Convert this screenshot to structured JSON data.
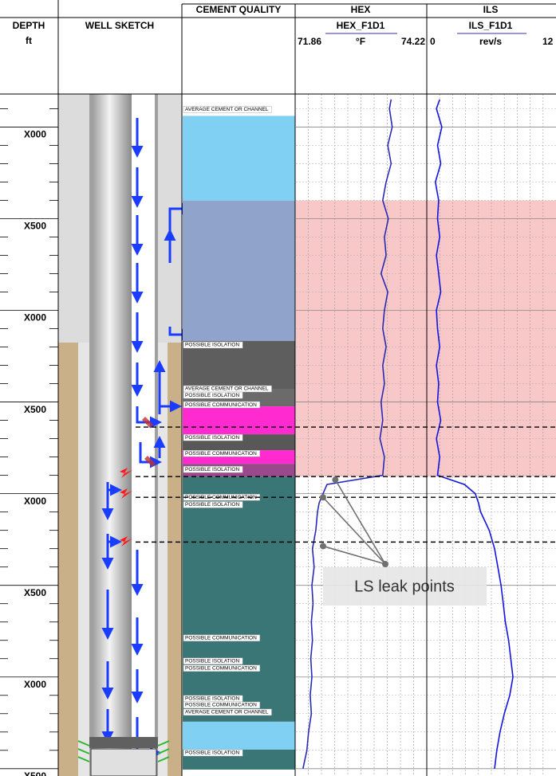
{
  "chart_data": {
    "type": "well_log",
    "depth_axis": {
      "title": "DEPTH",
      "unit": "ft",
      "lim": [
        -180,
        3540
      ],
      "ticks": [
        {
          "value": 0,
          "label": "X000"
        },
        {
          "value": 500,
          "label": "X500"
        },
        {
          "value": 1000,
          "label": "X000"
        },
        {
          "value": 1500,
          "label": "X500"
        },
        {
          "value": 2000,
          "label": "X000"
        },
        {
          "value": 2500,
          "label": "X500"
        },
        {
          "value": 3000,
          "label": "X000"
        },
        {
          "value": 3500,
          "label": "X500"
        }
      ],
      "minor_ticks": [
        -100,
        100,
        200,
        300,
        400,
        600,
        700,
        800,
        900,
        1100,
        1200,
        1300,
        1400,
        1600,
        1700,
        1800,
        1900,
        2100,
        2200,
        2300,
        2400,
        2600,
        2700,
        2800,
        2900,
        3100,
        3200,
        3300,
        3400
      ]
    },
    "sketch_title": "WELL SKETCH",
    "cement": {
      "title": "CEMENT QUALITY",
      "zones": [
        {
          "top": -61,
          "bottom": 401,
          "color": "#80d0f4"
        },
        {
          "top": 401,
          "bottom": 1167,
          "color": "#8fa3cb"
        },
        {
          "top": 1167,
          "bottom": 1428,
          "color": "#5e5e5e"
        },
        {
          "top": 1428,
          "bottom": 1524,
          "color": "#6b6b6b"
        },
        {
          "top": 1524,
          "bottom": 1676,
          "color": "#ff2ad0"
        },
        {
          "top": 1676,
          "bottom": 1763,
          "color": "#585858"
        },
        {
          "top": 1763,
          "bottom": 1837,
          "color": "#ff2ad0"
        },
        {
          "top": 1837,
          "bottom": 1907,
          "color": "#9a4a8c"
        },
        {
          "top": 1907,
          "bottom": 3244,
          "color": "#3b7676"
        },
        {
          "top": 3244,
          "bottom": 3396,
          "color": "#80d0f4"
        },
        {
          "top": 3396,
          "bottom": 3505,
          "color": "#3b7676"
        }
      ],
      "labels": [
        {
          "text": "AVERAGE CEMENT OR CHANNEL",
          "depth": -96
        },
        {
          "text": "POSSIBLE ISOLATION",
          "depth": 1189
        },
        {
          "text": "AVERAGE CEMENT OR CHANNEL",
          "depth": 1428
        },
        {
          "text": "POSSIBLE ISOLATION",
          "depth": 1463
        },
        {
          "text": "POSSIBLE COMMUNICATION",
          "depth": 1515
        },
        {
          "text": "POSSIBLE ISOLATION",
          "depth": 1694
        },
        {
          "text": "POSSIBLE COMMUNICATION",
          "depth": 1781
        },
        {
          "text": "POSSIBLE ISOLATION",
          "depth": 1868
        },
        {
          "text": "POSSIBLE COMMUNICATION",
          "depth": 2020
        },
        {
          "text": "POSSIBLE ISOLATION",
          "depth": 2060
        },
        {
          "text": "POSSIBLE COMMUNICATION",
          "depth": 2787
        },
        {
          "text": "POSSIBLE ISOLATION",
          "depth": 2913
        },
        {
          "text": "POSSIBLE COMMUNICATION",
          "depth": 2952
        },
        {
          "text": "POSSIBLE ISOLATION",
          "depth": 3118
        },
        {
          "text": "POSSIBLE COMMUNICATION",
          "depth": 3153
        },
        {
          "text": "AVERAGE CEMENT OR CHANNEL",
          "depth": 3192
        },
        {
          "text": "POSSIBLE ISOLATION",
          "depth": 3414
        }
      ]
    },
    "tracks": [
      {
        "title": "HEX",
        "curve": "HEX_F1D1",
        "unit": "°F",
        "xlim": [
          71.86,
          74.22
        ],
        "color": "#2a2ab8",
        "depth": [
          -150,
          -100,
          0,
          100,
          200,
          300,
          400,
          500,
          600,
          700,
          800,
          900,
          1000,
          1100,
          1200,
          1300,
          1400,
          1500,
          1600,
          1700,
          1800,
          1900,
          1950,
          2000,
          2050,
          2100,
          2200,
          2300,
          2400,
          2500,
          2600,
          2700,
          2800,
          2900,
          3000,
          3100,
          3200,
          3300,
          3400,
          3500
        ],
        "values": [
          73.58,
          73.55,
          73.6,
          73.52,
          73.58,
          73.49,
          73.43,
          73.53,
          73.46,
          73.49,
          73.4,
          73.52,
          73.46,
          73.43,
          73.49,
          73.43,
          73.46,
          73.4,
          73.43,
          73.38,
          73.46,
          73.43,
          72.43,
          72.36,
          72.29,
          72.26,
          72.23,
          72.17,
          72.2,
          72.16,
          72.18,
          72.15,
          72.17,
          72.14,
          72.16,
          72.13,
          72.15,
          72.1,
          72.07,
          72.0
        ]
      },
      {
        "title": "ILS",
        "curve": "ILS_F1D1",
        "unit": "rev/s",
        "xlim": [
          0,
          12
        ],
        "color": "#1414e0",
        "depth": [
          -150,
          -100,
          0,
          100,
          200,
          300,
          400,
          500,
          600,
          700,
          800,
          900,
          1000,
          1100,
          1200,
          1300,
          1400,
          1500,
          1600,
          1700,
          1800,
          1900,
          1950,
          2000,
          2050,
          2100,
          2200,
          2300,
          2400,
          2500,
          2600,
          2700,
          2800,
          2900,
          3000,
          3100,
          3200,
          3300,
          3400,
          3500
        ],
        "values": [
          1.2,
          0.9,
          1.4,
          1.0,
          1.3,
          0.8,
          1.1,
          1.0,
          1.2,
          0.9,
          1.1,
          1.3,
          0.9,
          1.0,
          1.2,
          0.9,
          1.1,
          1.0,
          1.3,
          0.9,
          1.2,
          1.0,
          3.5,
          4.5,
          4.8,
          5.0,
          5.8,
          6.3,
          6.6,
          6.9,
          7.1,
          7.3,
          7.6,
          7.8,
          8.0,
          7.7,
          7.2,
          6.8,
          6.5,
          6.3
        ]
      }
    ],
    "shaded_interval": {
      "top": 401,
      "bottom": 1907,
      "color": "#f6b4b4"
    },
    "markers": [
      1637,
      1907,
      2020,
      2264
    ],
    "annotation": {
      "text": "LS leak points",
      "points": [
        {
          "depth": 1924,
          "value": 72.58
        },
        {
          "depth": 2020,
          "value": 72.36
        },
        {
          "depth": 2286,
          "value": 72.36
        }
      ]
    }
  }
}
